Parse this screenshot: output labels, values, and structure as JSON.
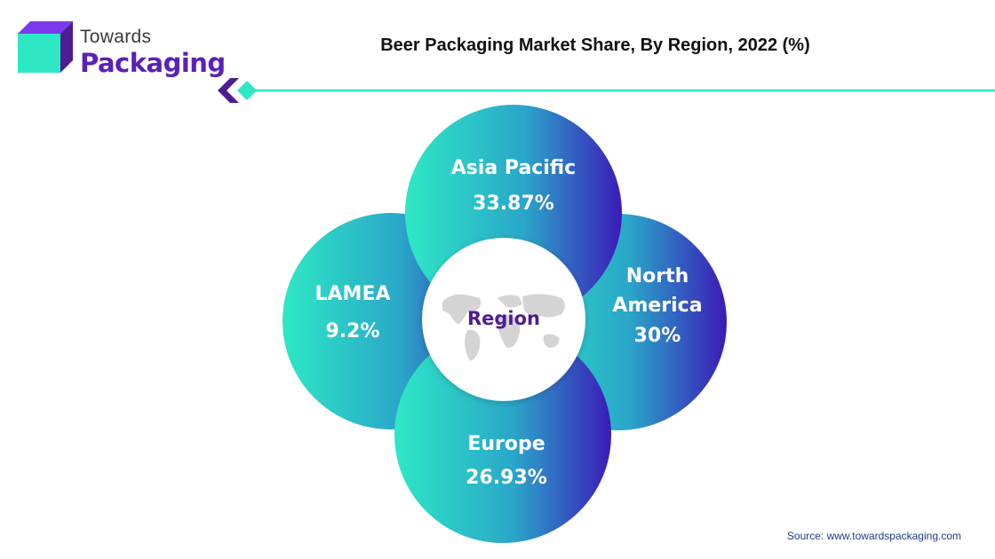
{
  "brand": {
    "name_top": "Towards",
    "name_bottom": "Packaging"
  },
  "title": "Beer Packaging Market Share, By Region, 2022 (%)",
  "source": "Source: www.towardspackaging.com",
  "colors": {
    "teal": "#2ee8c5",
    "indigo": "#3b1bb8",
    "brand_purple": "#5b21b6",
    "center_label": "#4c1d95",
    "map_gray": "#d4d4d4"
  },
  "icons": [
    "logo-cube-icon",
    "chevron-left-icon",
    "world-map-icon"
  ],
  "chart_data": {
    "type": "pie",
    "center_label": "Region",
    "unit": "%",
    "categories": [
      "Asia Pacific",
      "North America",
      "Europe",
      "LAMEA"
    ],
    "values": [
      33.87,
      30,
      26.93,
      9.2
    ],
    "value_labels": [
      "33.87%",
      "30%",
      "26.93%",
      "9.2%"
    ],
    "label_lines": [
      [
        "Asia Pacific"
      ],
      [
        "North",
        "America"
      ],
      [
        "Europe"
      ],
      [
        "LAMEA"
      ]
    ]
  }
}
